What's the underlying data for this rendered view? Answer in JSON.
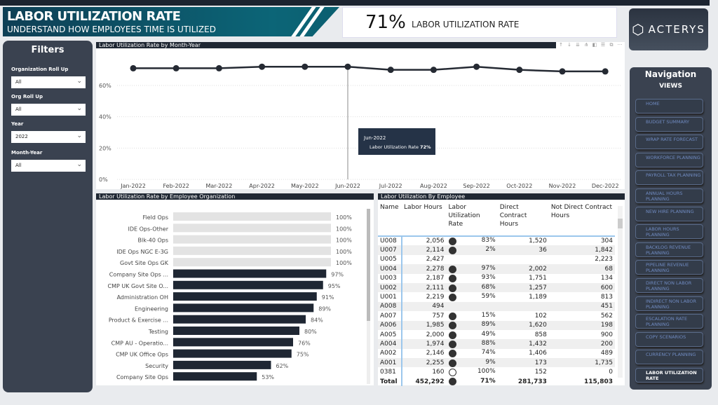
{
  "header": {
    "title": "LABOR UTILIZATION RATE",
    "subtitle": "UNDERSTAND HOW EMPLOYEES TIME IS UTILIZED"
  },
  "kpi": {
    "value": "71%",
    "label": "LABOR UTILIZATION RATE"
  },
  "logo": {
    "text": "ACTERYS"
  },
  "filters": {
    "title": "Filters",
    "items": [
      {
        "label": "Organization Roll Up",
        "value": "All"
      },
      {
        "label": "Org Roll Up",
        "value": "All"
      },
      {
        "label": "Year",
        "value": "2022"
      },
      {
        "label": "Month-Year",
        "value": "All"
      }
    ]
  },
  "chart_data": [
    {
      "type": "line",
      "title": "Labor Utilization Rate by Month-Year",
      "categories": [
        "Jan-2022",
        "Feb-2022",
        "Mar-2022",
        "Apr-2022",
        "May-2022",
        "Jun-2022",
        "Jul-2022",
        "Aug-2022",
        "Sep-2022",
        "Oct-2022",
        "Nov-2022",
        "Dec-2022"
      ],
      "values": [
        71,
        71,
        71,
        72,
        72,
        72,
        70,
        70,
        72,
        70,
        69,
        69
      ],
      "ylim": [
        0,
        70
      ],
      "yticks": [
        "0%",
        "20%",
        "40%",
        "60%"
      ],
      "grid": true,
      "color": "#252a33",
      "tooltip": {
        "title": "Jun-2022",
        "label": "Labor Utilization Rate",
        "value": "72%"
      }
    },
    {
      "type": "bar",
      "orientation": "horizontal",
      "title": "Labor Utilization Rate by Employee Organization",
      "categories": [
        "Field Ops",
        "IDE Ops-Other",
        "Blk-40 Ops",
        "IDE Ops NGC E-3G",
        "Govt Site Ops GK",
        "Company Site Ops ...",
        "CMP UK Govt Site O...",
        "Administration OH",
        "Engineering",
        "Product & Exercise ...",
        "Testing",
        "CMP AU - Operatio...",
        "CMP UK Office Ops",
        "Security",
        "Company Site Ops"
      ],
      "values": [
        100,
        100,
        100,
        100,
        100,
        97,
        95,
        91,
        89,
        84,
        80,
        76,
        75,
        62,
        53
      ],
      "labels": [
        "100%",
        "100%",
        "100%",
        "100%",
        "100%",
        "97%",
        "95%",
        "91%",
        "89%",
        "84%",
        "80%",
        "76%",
        "75%",
        "62%",
        "53%"
      ],
      "xlim": [
        0,
        100
      ],
      "colors": {
        "highlight": "#1f2733",
        "muted": "#e3e3e3"
      }
    }
  ],
  "chart_toolbar": [
    "↑",
    "↓",
    "⇊",
    "⋔",
    "◧",
    "☰",
    "⧉",
    "···"
  ],
  "table": {
    "title": "Labor Utilization By Employee",
    "columns": [
      "Name",
      "Labor Hours",
      "Labor Utilization Rate",
      "Direct Contract Hours",
      "Not Direct Contract Hours"
    ],
    "rows": [
      [
        "U008",
        "2,056",
        "83%",
        "1,520",
        "304"
      ],
      [
        "U007",
        "2,114",
        "2%",
        "36",
        "1,842"
      ],
      [
        "U005",
        "2,427",
        "",
        "",
        "2,223"
      ],
      [
        "U004",
        "2,278",
        "97%",
        "2,002",
        "68"
      ],
      [
        "U003",
        "2,187",
        "93%",
        "1,751",
        "134"
      ],
      [
        "U002",
        "2,111",
        "68%",
        "1,257",
        "600"
      ],
      [
        "U001",
        "2,219",
        "59%",
        "1,189",
        "813"
      ],
      [
        "A008",
        "494",
        "",
        "",
        "451"
      ],
      [
        "A007",
        "757",
        "15%",
        "102",
        "562"
      ],
      [
        "A006",
        "1,985",
        "89%",
        "1,620",
        "198"
      ],
      [
        "A005",
        "2,000",
        "49%",
        "858",
        "900"
      ],
      [
        "A004",
        "1,974",
        "88%",
        "1,432",
        "200"
      ],
      [
        "A002",
        "2,146",
        "74%",
        "1,406",
        "489"
      ],
      [
        "A001",
        "2,255",
        "9%",
        "173",
        "1,735"
      ],
      [
        "0381",
        "160",
        "100%",
        "152",
        "0"
      ]
    ],
    "total": [
      "Total",
      "452,292",
      "71%",
      "281,733",
      "115,803"
    ]
  },
  "nav": {
    "title": "Navigation",
    "subtitle": "VIEWS",
    "items": [
      "HOME",
      "BUDGET SUMMARY",
      "WRAP RATE FORECAST",
      "WORKFORCE PLANNING",
      "PAYROLL TAX PLANNING",
      "ANNUAL HOURS PLANNING",
      "NEW HIRE PLANNING",
      "LABOR HOURS PLANNING",
      "BACKLOG REVENUE PLANNING",
      "PIPELINE REVENUE PLANNING",
      "DIRECT NON LABOR PLANNING",
      "INDIRECT NON LABOR PLANNING",
      "ESCALATION RATE PLANNING",
      "COPY SCENARIOS",
      "CURRENCY PLANNING",
      "LABOR UTILIZATION RATE"
    ],
    "active": "LABOR UTILIZATION RATE"
  }
}
